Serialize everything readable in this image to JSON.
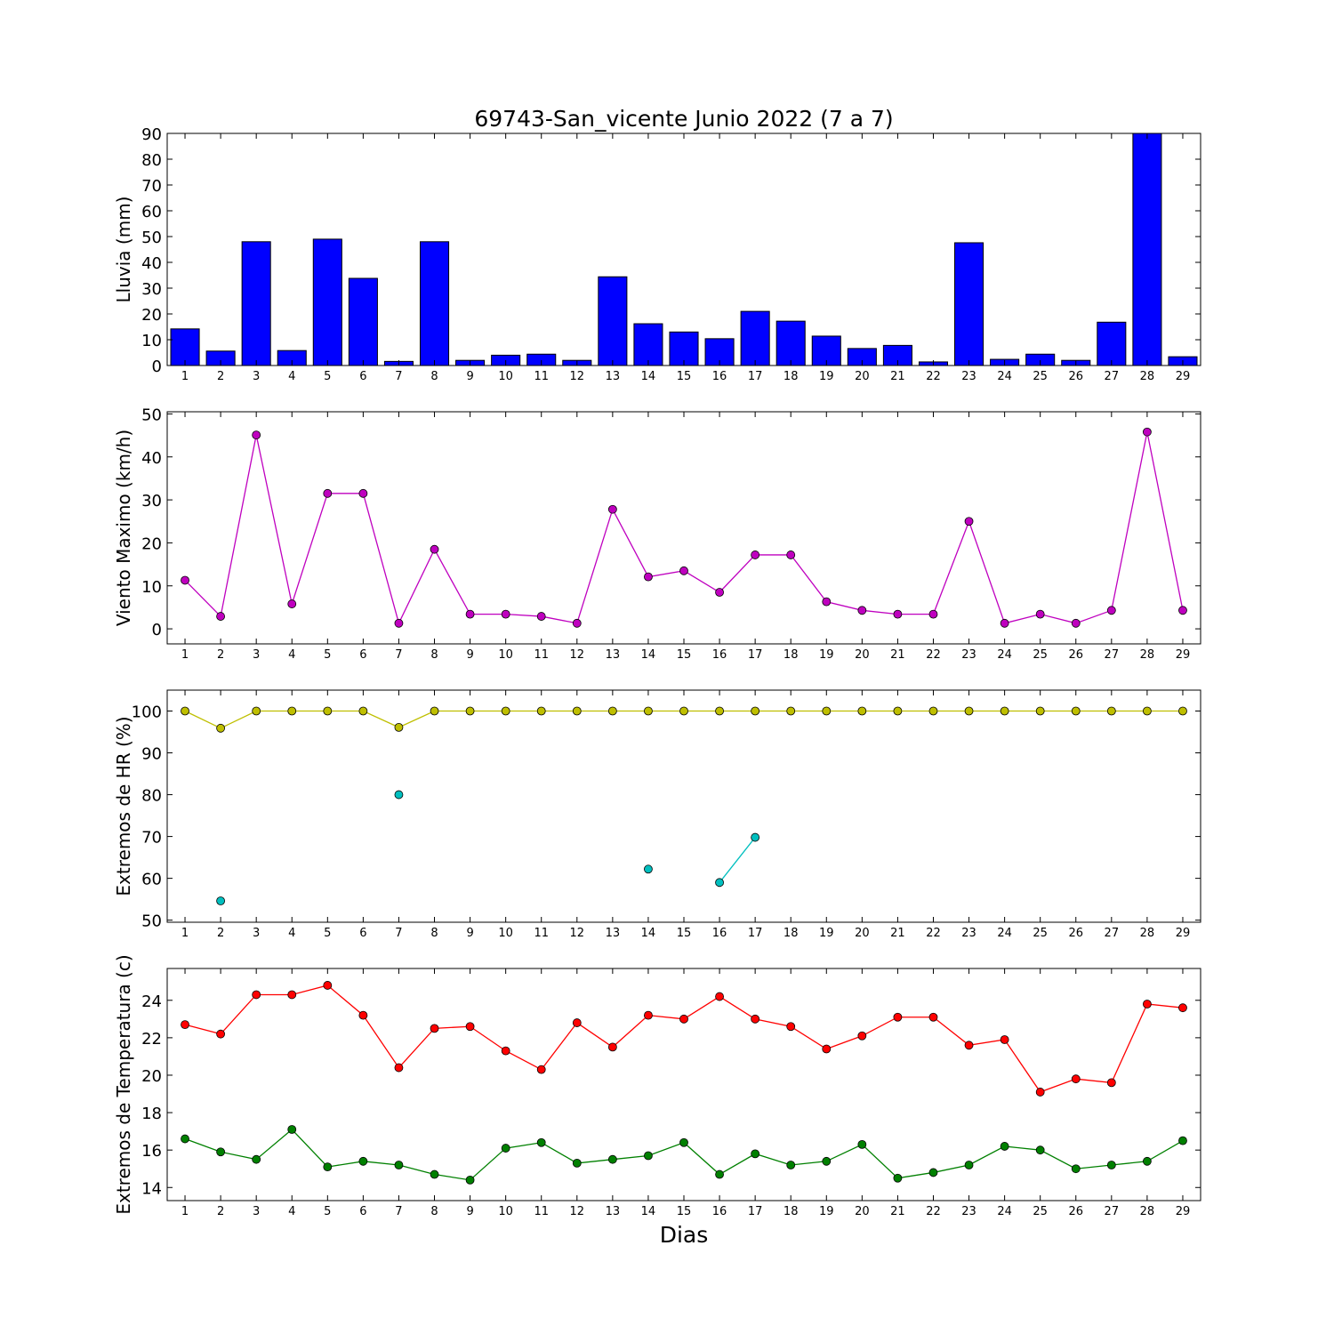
{
  "title": "69743-San_vicente Junio 2022  (7 a 7)",
  "xlabel": "Dias",
  "chart_data": [
    {
      "type": "bar",
      "ylabel": "Lluvia (mm)",
      "ylim": [
        0,
        90
      ],
      "yticks": [
        0,
        10,
        20,
        30,
        40,
        50,
        60,
        70,
        80,
        90
      ],
      "xticks": [
        1,
        2,
        3,
        4,
        5,
        6,
        7,
        8,
        9,
        10,
        11,
        12,
        13,
        14,
        15,
        16,
        17,
        18,
        19,
        20,
        21,
        22,
        23,
        24,
        25,
        26,
        27,
        28,
        29
      ],
      "x": [
        1,
        2,
        3,
        4,
        5,
        6,
        7,
        8,
        9,
        10,
        11,
        12,
        13,
        14,
        15,
        16,
        17,
        18,
        19,
        20,
        21,
        22,
        23,
        24,
        25,
        26,
        27,
        28,
        29
      ],
      "values": [
        14.2,
        5.6,
        48,
        5.8,
        49,
        33.8,
        1.6,
        48,
        2,
        4,
        4.4,
        2,
        34.4,
        16.2,
        13,
        10.4,
        21,
        17.2,
        11.4,
        6.6,
        7.8,
        1.4,
        47.6,
        2.4,
        4.4,
        2,
        16.8,
        90,
        3.4
      ],
      "colors": {
        "fill": "#0000ff",
        "stroke": "#000000"
      },
      "grid": false
    },
    {
      "type": "line",
      "ylabel": "Viento Maximo (km/h)",
      "ylim": [
        -3.5,
        50.5
      ],
      "yticks": [
        0,
        10,
        20,
        30,
        40,
        50
      ],
      "xticks": [
        1,
        2,
        3,
        4,
        5,
        6,
        7,
        8,
        9,
        10,
        11,
        12,
        13,
        14,
        15,
        16,
        17,
        18,
        19,
        20,
        21,
        22,
        23,
        24,
        25,
        26,
        27,
        28,
        29
      ],
      "x": [
        1,
        2,
        3,
        4,
        5,
        6,
        7,
        8,
        9,
        10,
        11,
        12,
        13,
        14,
        15,
        16,
        17,
        18,
        19,
        20,
        21,
        22,
        23,
        24,
        25,
        26,
        27,
        28,
        29
      ],
      "series": [
        {
          "values": [
            11.3,
            2.9,
            45.1,
            5.8,
            31.5,
            31.5,
            1.3,
            18.5,
            3.4,
            3.4,
            2.9,
            1.3,
            27.8,
            12.1,
            13.5,
            8.5,
            17.2,
            17.2,
            6.3,
            4.3,
            3.4,
            3.4,
            25,
            1.3,
            3.4,
            1.3,
            4.3,
            45.8,
            4.3
          ],
          "color": "#bf00bf"
        }
      ],
      "grid": false
    },
    {
      "type": "line",
      "ylabel": "Extremos de HR (%)",
      "ylim": [
        49.5,
        105
      ],
      "yticks": [
        50,
        60,
        70,
        80,
        90,
        100
      ],
      "xticks": [
        1,
        2,
        3,
        4,
        5,
        6,
        7,
        8,
        9,
        10,
        11,
        12,
        13,
        14,
        15,
        16,
        17,
        18,
        19,
        20,
        21,
        22,
        23,
        24,
        25,
        26,
        27,
        28,
        29
      ],
      "x": [
        1,
        2,
        3,
        4,
        5,
        6,
        7,
        8,
        9,
        10,
        11,
        12,
        13,
        14,
        15,
        16,
        17,
        18,
        19,
        20,
        21,
        22,
        23,
        24,
        25,
        26,
        27,
        28,
        29
      ],
      "series": [
        {
          "values": [
            100,
            95.9,
            100,
            100,
            100,
            100,
            96.1,
            100,
            100,
            100,
            100,
            100,
            100,
            100,
            100,
            100,
            100,
            100,
            100,
            100,
            100,
            100,
            100,
            100,
            100,
            100,
            100,
            100,
            100
          ],
          "color": "#bfbf00"
        },
        {
          "values": [
            null,
            54.6,
            null,
            null,
            null,
            null,
            80,
            null,
            null,
            null,
            null,
            null,
            null,
            62.2,
            null,
            59,
            69.8,
            null,
            null,
            null,
            null,
            null,
            null,
            null,
            null,
            null,
            null,
            null,
            null
          ],
          "color": "#00bfbf"
        }
      ],
      "grid": false
    },
    {
      "type": "line",
      "ylabel": "Extremos de Temperatura (c)",
      "ylim": [
        13.3,
        25.7
      ],
      "yticks": [
        14,
        16,
        18,
        20,
        22,
        24
      ],
      "xticks": [
        1,
        2,
        3,
        4,
        5,
        6,
        7,
        8,
        9,
        10,
        11,
        12,
        13,
        14,
        15,
        16,
        17,
        18,
        19,
        20,
        21,
        22,
        23,
        24,
        25,
        26,
        27,
        28,
        29
      ],
      "x": [
        1,
        2,
        3,
        4,
        5,
        6,
        7,
        8,
        9,
        10,
        11,
        12,
        13,
        14,
        15,
        16,
        17,
        18,
        19,
        20,
        21,
        22,
        23,
        24,
        25,
        26,
        27,
        28,
        29
      ],
      "series": [
        {
          "values": [
            22.7,
            22.2,
            24.3,
            24.3,
            24.8,
            23.2,
            20.4,
            22.5,
            22.6,
            21.3,
            20.3,
            22.8,
            21.5,
            23.2,
            23,
            24.2,
            23,
            22.6,
            21.4,
            22.1,
            23.1,
            23.1,
            21.6,
            21.9,
            19.1,
            19.8,
            19.6,
            23.8,
            23.6
          ],
          "color": "#ff0000"
        },
        {
          "values": [
            16.6,
            15.9,
            15.5,
            17.1,
            15.1,
            15.4,
            15.2,
            14.7,
            14.4,
            16.1,
            16.4,
            15.3,
            15.5,
            15.7,
            16.4,
            14.7,
            15.8,
            15.2,
            15.4,
            16.3,
            14.5,
            14.8,
            15.2,
            16.2,
            16,
            15,
            15.2,
            15.4,
            16.5
          ],
          "color": "#008000"
        }
      ],
      "grid": false
    }
  ]
}
